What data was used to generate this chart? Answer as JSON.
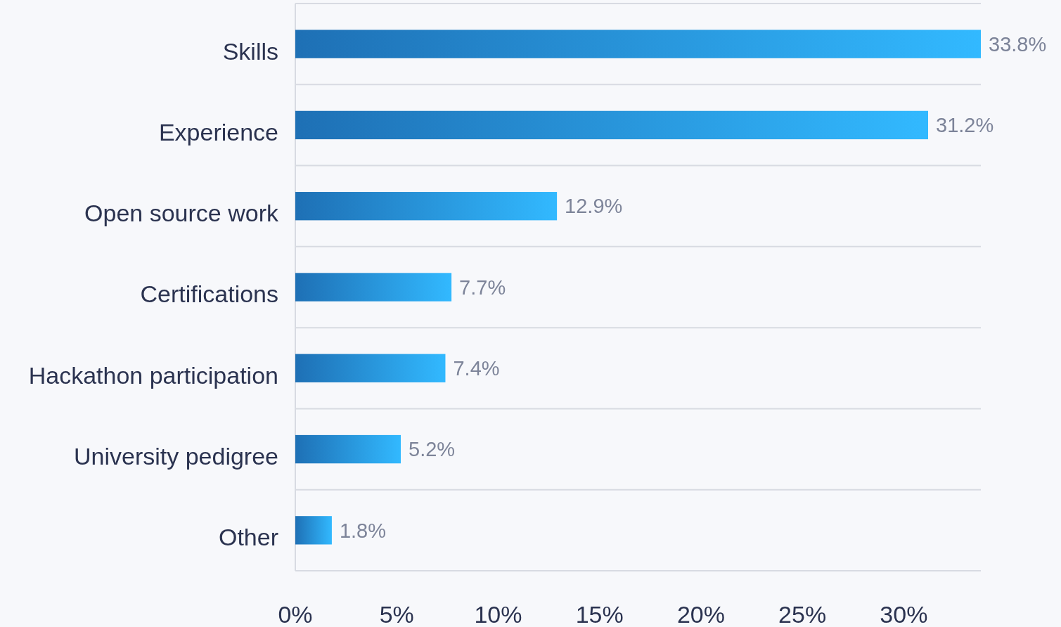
{
  "chart_data": {
    "type": "bar",
    "orientation": "horizontal",
    "categories": [
      "Skills",
      "Experience",
      "Open source work",
      "Certifications",
      "Hackathon participation",
      "University pedigree",
      "Other"
    ],
    "values": [
      33.8,
      31.2,
      12.9,
      7.7,
      7.4,
      5.2,
      1.8
    ],
    "color": "#2790e8",
    "value_labels": [
      "33.8%",
      "31.2%",
      "12.9%",
      "7.7%",
      "7.4%",
      "5.2%",
      "1.8%"
    ],
    "xlim": [
      0,
      33.8
    ],
    "xticks": [
      {
        "value": 0,
        "label": "0%"
      },
      {
        "value": 5,
        "label": "5%"
      },
      {
        "value": 10,
        "label": "10%"
      },
      {
        "value": 15,
        "label": "15%"
      },
      {
        "value": 20,
        "label": "20%"
      },
      {
        "value": 25,
        "label": "25%"
      },
      {
        "value": 30,
        "label": "30%"
      }
    ],
    "grid": "y"
  }
}
